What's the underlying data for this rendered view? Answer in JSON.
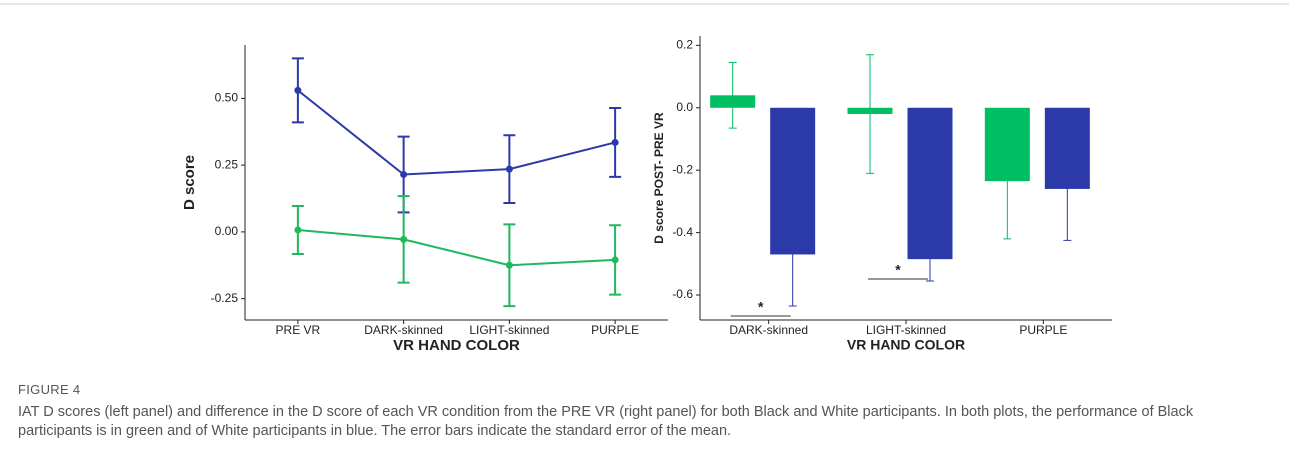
{
  "chart_data": [
    {
      "type": "line",
      "y_label": "D score",
      "x_label": "VR HAND COLOR",
      "categories": [
        "PRE VR",
        "DARK-skinned",
        "LIGHT-skinned",
        "PURPLE"
      ],
      "series": [
        {
          "color": "#2b3aa8",
          "values": [
            0.53,
            0.215,
            0.235,
            0.335
          ],
          "errors": [
            0.12,
            0.142,
            0.127,
            0.129
          ]
        },
        {
          "color": "#1fb85c",
          "values": [
            0.007,
            -0.028,
            -0.125,
            -0.105
          ],
          "errors": [
            0.09,
            0.162,
            0.153,
            0.13
          ]
        }
      ],
      "ylim": [
        -0.33,
        0.7
      ],
      "yticks": [
        {
          "value": -0.25,
          "label": "-0.25"
        },
        {
          "value": 0,
          "label": "0.00"
        },
        {
          "value": 0.25,
          "label": "0.25"
        },
        {
          "value": 0.5,
          "label": "0.50"
        }
      ]
    },
    {
      "type": "bar",
      "y_label": "D score POST- PRE VR",
      "x_label": "VR HAND COLOR",
      "categories": [
        "DARK-skinned",
        "LIGHT-skinned",
        "PURPLE"
      ],
      "series": [
        {
          "color": "#00bf63",
          "values": [
            0.04,
            -0.02,
            -0.235
          ],
          "errors": [
            0.105,
            0.19,
            0.185
          ]
        },
        {
          "color": "#2b3aa8",
          "values": [
            -0.47,
            -0.485,
            -0.26
          ],
          "errors": [
            0.165,
            0.07,
            0.165
          ]
        }
      ],
      "ylim": [
        -0.68,
        0.23
      ],
      "yticks": [
        {
          "value": -0.6,
          "label": "-0.6"
        },
        {
          "value": -0.4,
          "label": "-0.4"
        },
        {
          "value": -0.2,
          "label": "-0.2"
        },
        {
          "value": 0,
          "label": "0.0"
        },
        {
          "value": 0.2,
          "label": "0.2"
        }
      ],
      "annotations": [
        "*",
        "*"
      ]
    }
  ],
  "figure": {
    "label": "FIGURE 4",
    "caption": "IAT D scores (left panel) and difference in the D score of each VR condition from the PRE VR (right panel) for both Black and White participants. In both plots, the performance of Black participants is in green and of White participants in blue. The error bars indicate the standard error of the mean."
  }
}
